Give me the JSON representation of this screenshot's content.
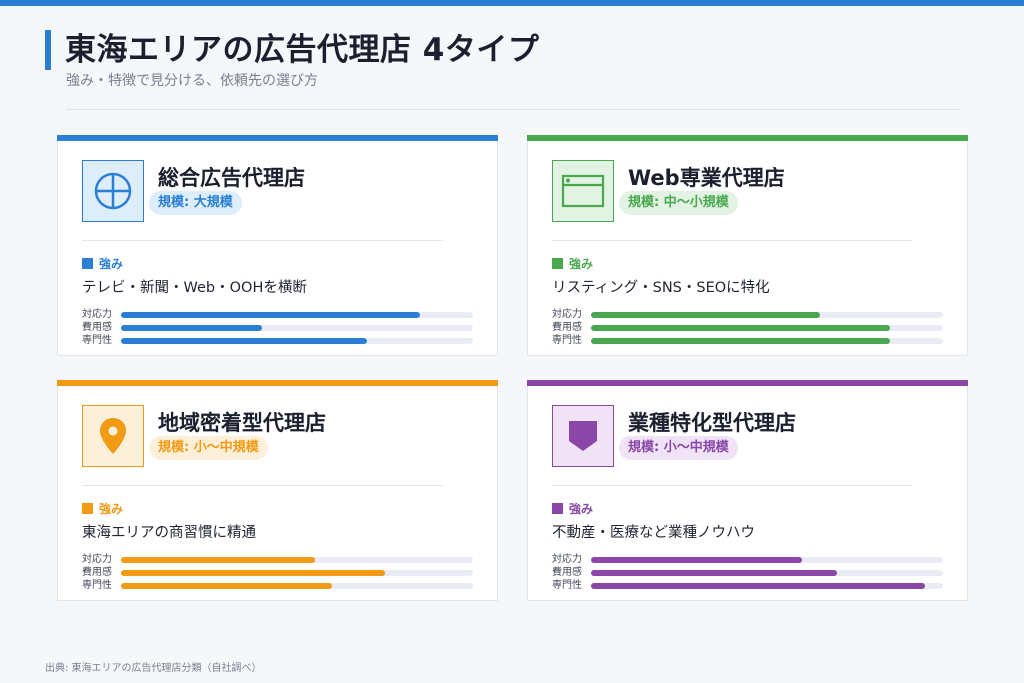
{
  "header": {
    "title": "東海エリアの広告代理店 4タイプ",
    "subtitle": "強み・特徴で見分ける、依頼先の選び方"
  },
  "metric_labels": [
    "対応力",
    "費用感",
    "専門性"
  ],
  "cards": [
    {
      "name": "総合広告代理店",
      "badge": "規模: 大規模",
      "icon": "globe-icon",
      "color": "#2a7fd4",
      "tint": "#deedfa",
      "strength_label": "強み",
      "strength": "テレビ・新聞・Web・OOHを横断",
      "metrics": [
        0.85,
        0.4,
        0.7
      ]
    },
    {
      "name": "Web専業代理店",
      "badge": "規模: 中〜小規模",
      "icon": "browser-window-icon",
      "color": "#49a84f",
      "tint": "#e2f3e3",
      "strength_label": "強み",
      "strength": "リスティング・SNS・SEOに特化",
      "metrics": [
        0.65,
        0.85,
        0.85
      ]
    },
    {
      "name": "地域密着型代理店",
      "badge": "規模: 小〜中規模",
      "icon": "map-pin-icon",
      "color": "#f29a14",
      "tint": "#fdf0da",
      "strength_label": "強み",
      "strength": "東海エリアの商習慣に精通",
      "metrics": [
        0.55,
        0.75,
        0.6
      ]
    },
    {
      "name": "業種特化型代理店",
      "badge": "規模: 小〜中規模",
      "icon": "shield-icon",
      "color": "#8a47a8",
      "tint": "#efe3f5",
      "strength_label": "強み",
      "strength": "不動産・医療など業種ノウハウ",
      "metrics": [
        0.6,
        0.7,
        0.95
      ]
    }
  ],
  "footer": "出典: 東海エリアの広告代理店分類（自社調べ）"
}
